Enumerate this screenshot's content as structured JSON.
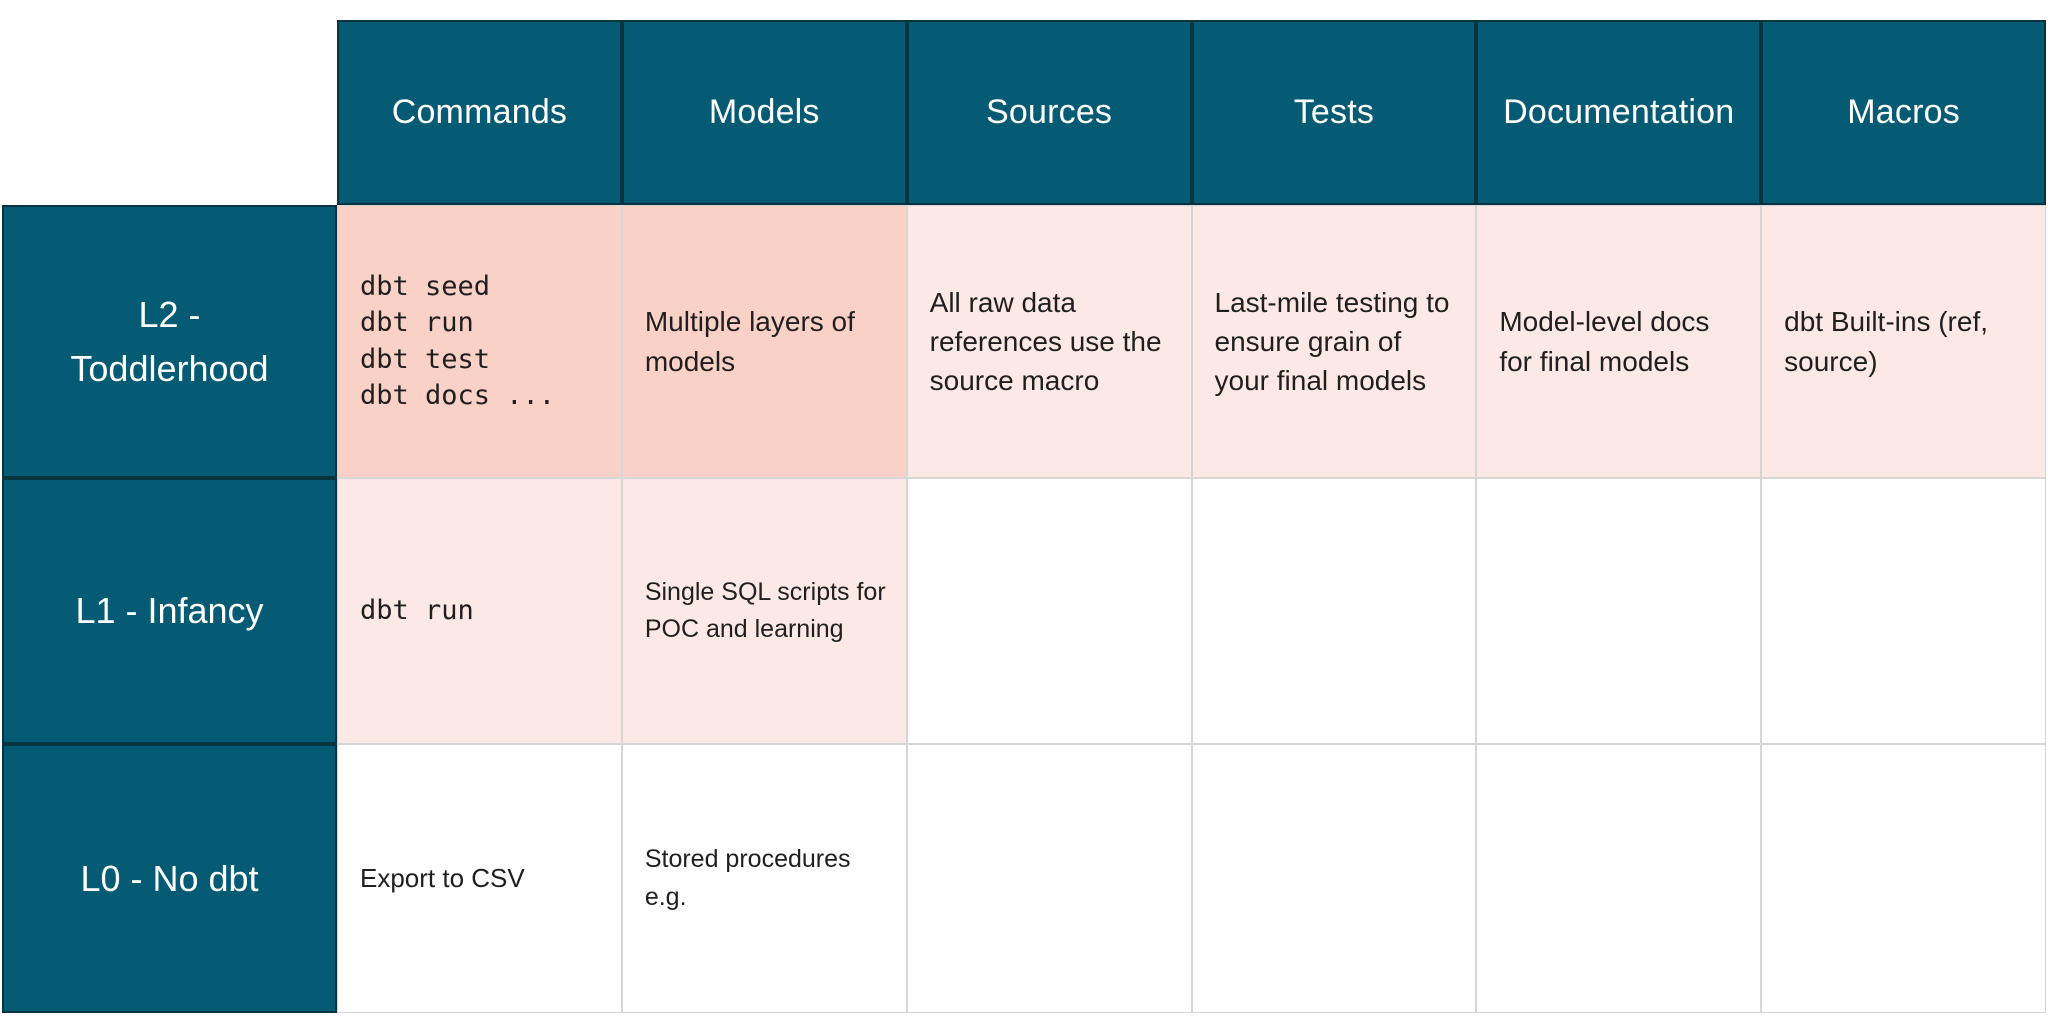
{
  "colors": {
    "teal": "#055B73",
    "teal_border": "#0A3340",
    "pink_strong": "#FAD1C7",
    "pink_light": "#FCE9E5",
    "grid_line": "#D6D6D6",
    "header_text": "#FFFFFF",
    "cell_text": "#1F1F1F"
  },
  "table": {
    "column_headers": [
      "Commands",
      "Models",
      "Sources",
      "Tests",
      "Documentation",
      "Macros"
    ],
    "rows": [
      {
        "label": "L2 -\nToddlerhood",
        "cells": [
          {
            "text": "dbt seed\ndbt run\ndbt test\ndbt docs ...",
            "highlight": "strong",
            "mono": true
          },
          {
            "text": "Multiple layers of\nmodels",
            "highlight": "strong"
          },
          {
            "text": "All raw data\nreferences use the\nsource macro",
            "highlight": "light"
          },
          {
            "text": "Last-mile testing to\nensure grain of\nyour final models",
            "highlight": "light"
          },
          {
            "text": "Model-level docs\nfor final models",
            "highlight": "light"
          },
          {
            "text": "dbt Built-ins (ref,\nsource)",
            "highlight": "light"
          }
        ]
      },
      {
        "label": "L1 - Infancy",
        "cells": [
          {
            "text": "dbt run",
            "highlight": "light",
            "mono": true
          },
          {
            "text": "Single SQL scripts for\nPOC and learning",
            "highlight": "light"
          },
          {
            "text": "",
            "highlight": "none"
          },
          {
            "text": "",
            "highlight": "none"
          },
          {
            "text": "",
            "highlight": "none"
          },
          {
            "text": "",
            "highlight": "none"
          }
        ]
      },
      {
        "label": "L0 - No dbt",
        "cells": [
          {
            "text": "Export to CSV",
            "highlight": "none"
          },
          {
            "text": "Stored procedures\ne.g.",
            "highlight": "none"
          },
          {
            "text": "",
            "highlight": "none"
          },
          {
            "text": "",
            "highlight": "none"
          },
          {
            "text": "",
            "highlight": "none"
          },
          {
            "text": "",
            "highlight": "none"
          }
        ]
      }
    ]
  }
}
